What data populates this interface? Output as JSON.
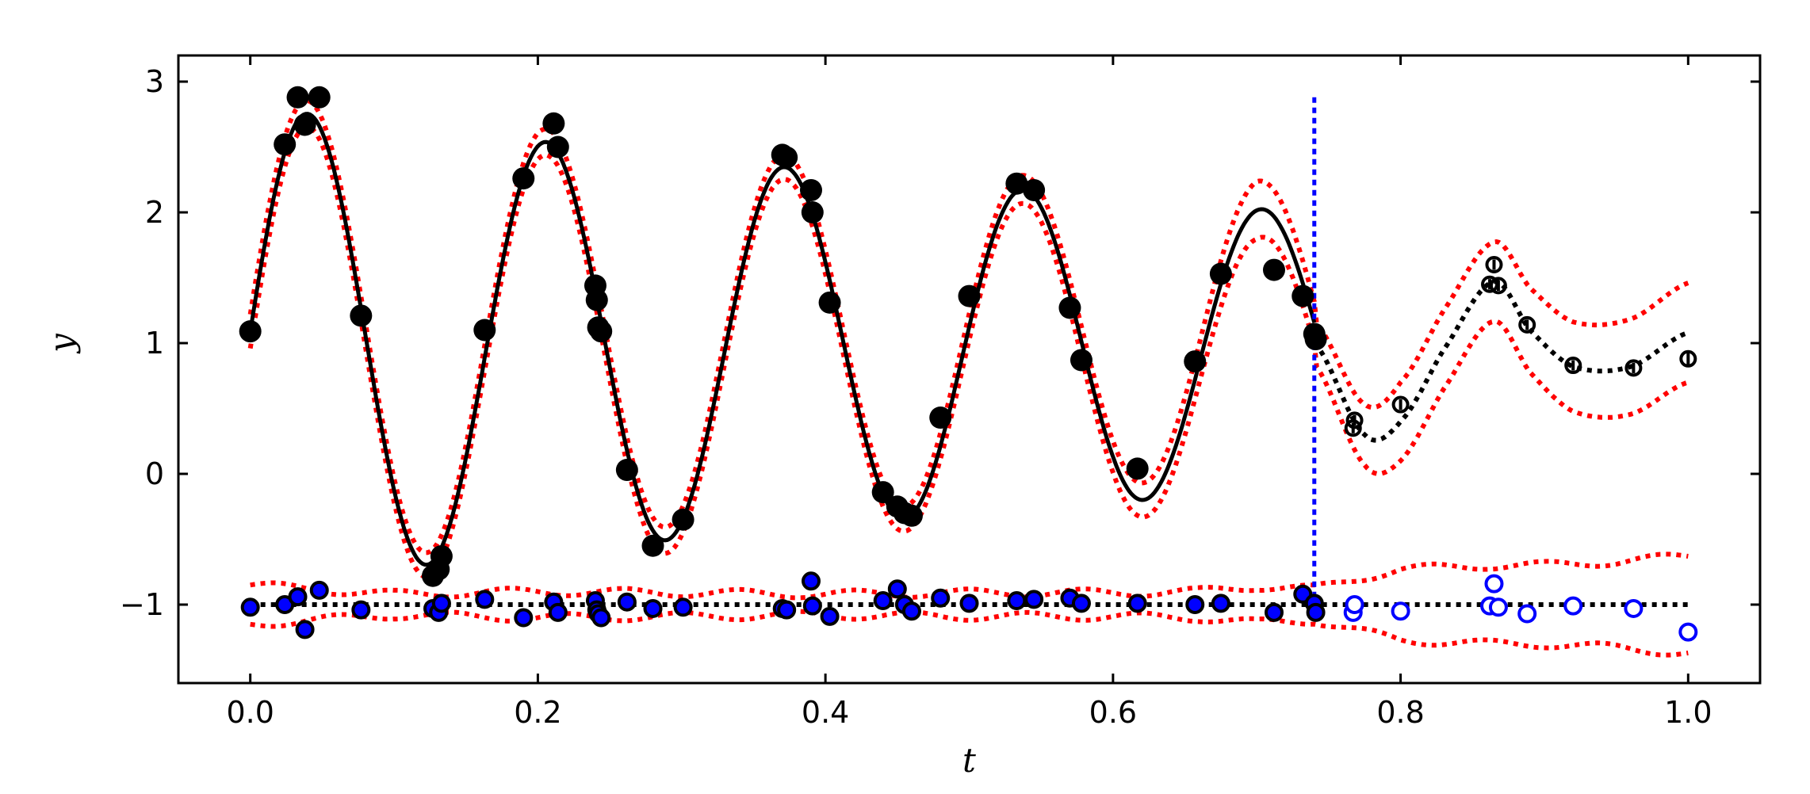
{
  "chart_data": {
    "type": "line",
    "title": "",
    "xlabel": "t",
    "ylabel": "y",
    "xlim": [
      -0.05,
      1.05
    ],
    "ylim": [
      -1.6,
      3.2
    ],
    "xticks": [
      0.0,
      0.2,
      0.4,
      0.6,
      0.8,
      1.0
    ],
    "xtick_labels": [
      "0.0",
      "0.2",
      "0.4",
      "0.6",
      "0.8",
      "1.0"
    ],
    "yticks": [
      -1,
      0,
      1,
      2,
      3
    ],
    "ytick_labels": [
      "−1",
      "0",
      "1",
      "2",
      "3"
    ],
    "grid": false,
    "legend": "none",
    "split_t": 0.74,
    "colors": {
      "fit": "#000000",
      "band": "#ff0000",
      "split_line": "#0000ff",
      "residual_test": "#0000ff",
      "train_marker": "#000000",
      "residual_fill": "#0000ff"
    },
    "train_points": {
      "x": [
        0.0,
        0.024,
        0.033,
        0.038,
        0.048,
        0.077,
        0.127,
        0.131,
        0.133,
        0.163,
        0.19,
        0.211,
        0.214,
        0.24,
        0.241,
        0.242,
        0.244,
        0.262,
        0.28,
        0.301,
        0.37,
        0.373,
        0.39,
        0.391,
        0.403,
        0.44,
        0.45,
        0.455,
        0.46,
        0.48,
        0.5,
        0.533,
        0.545,
        0.57,
        0.578,
        0.617,
        0.657,
        0.675,
        0.712,
        0.732,
        0.74,
        0.741
      ],
      "y": [
        1.09,
        2.52,
        2.88,
        2.67,
        2.88,
        1.21,
        -0.78,
        -0.73,
        -0.63,
        1.1,
        2.26,
        2.68,
        2.5,
        1.44,
        1.33,
        1.12,
        1.09,
        0.03,
        -0.55,
        -0.35,
        2.44,
        2.42,
        2.17,
        2.0,
        1.31,
        -0.14,
        -0.25,
        -0.3,
        -0.32,
        0.43,
        1.36,
        2.22,
        2.17,
        1.27,
        0.87,
        0.04,
        0.86,
        1.53,
        1.56,
        1.36,
        1.07,
        1.03
      ]
    },
    "test_points": {
      "x": [
        0.767,
        0.768,
        0.8,
        0.862,
        0.865,
        0.868,
        0.888,
        0.92,
        0.962,
        1.0
      ],
      "y": [
        0.35,
        0.41,
        0.53,
        1.45,
        1.6,
        1.44,
        1.14,
        0.83,
        0.81,
        0.88
      ],
      "yerr": [
        0.04,
        0.04,
        0.04,
        0.04,
        0.04,
        0.04,
        0.04,
        0.04,
        0.04,
        0.05
      ]
    },
    "train_residuals": {
      "y": [
        -1.02,
        -1.0,
        -0.94,
        -1.19,
        -0.89,
        -1.04,
        -1.03,
        -1.06,
        -0.99,
        -0.96,
        -1.1,
        -0.98,
        -1.06,
        -0.97,
        -1.04,
        -1.07,
        -1.1,
        -0.98,
        -1.03,
        -1.02,
        -1.03,
        -1.04,
        -0.82,
        -1.01,
        -1.09,
        -0.97,
        -0.88,
        -1.0,
        -1.05,
        -0.95,
        -0.99,
        -0.97,
        -0.96,
        -0.95,
        -0.99,
        -0.99,
        -1.0,
        -0.99,
        -1.06,
        -0.92,
        -0.99,
        -1.06
      ],
      "yerr": [
        0.06,
        0.06,
        0.06,
        0.06,
        0.06,
        0.06,
        0.06,
        0.06,
        0.06,
        0.06,
        0.06,
        0.06,
        0.06,
        0.06,
        0.06,
        0.06,
        0.06,
        0.06,
        0.06,
        0.06,
        0.06,
        0.06,
        0.06,
        0.06,
        0.06,
        0.06,
        0.06,
        0.06,
        0.06,
        0.06,
        0.06,
        0.06,
        0.06,
        0.06,
        0.06,
        0.06,
        0.06,
        0.06,
        0.06,
        0.06,
        0.06,
        0.06
      ]
    },
    "test_residuals": {
      "y": [
        -1.06,
        -1.0,
        -1.05,
        -1.01,
        -0.84,
        -1.02,
        -1.07,
        -1.01,
        -1.03,
        -1.21
      ],
      "yerr": [
        0.05,
        0.05,
        0.05,
        0.05,
        0.05,
        0.05,
        0.05,
        0.05,
        0.05,
        0.05
      ]
    },
    "band_width": {
      "x": [
        0.0,
        0.04,
        0.1,
        0.2,
        0.3,
        0.4,
        0.5,
        0.6,
        0.66,
        0.7,
        0.74,
        0.77,
        0.8,
        0.86,
        0.9,
        0.95,
        1.0
      ],
      "half_width": [
        0.13,
        0.1,
        0.09,
        0.1,
        0.1,
        0.09,
        0.1,
        0.12,
        0.15,
        0.22,
        0.16,
        0.22,
        0.3,
        0.3,
        0.33,
        0.36,
        0.38
      ]
    },
    "residual_band_width": {
      "x": [
        0.0,
        0.04,
        0.1,
        0.2,
        0.3,
        0.4,
        0.5,
        0.6,
        0.66,
        0.7,
        0.74,
        0.77,
        0.8,
        0.86,
        0.9,
        0.95,
        1.0
      ],
      "half_width": [
        0.15,
        0.12,
        0.08,
        0.1,
        0.09,
        0.08,
        0.09,
        0.09,
        0.1,
        0.14,
        0.12,
        0.2,
        0.27,
        0.3,
        0.3,
        0.33,
        0.37
      ]
    }
  }
}
